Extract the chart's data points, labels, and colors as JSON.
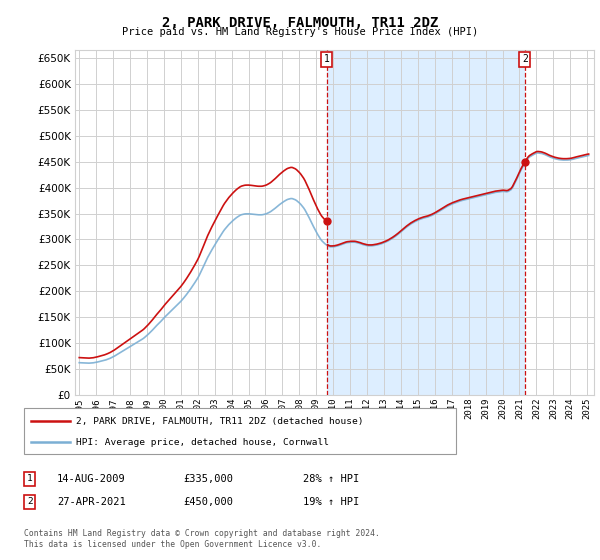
{
  "title": "2, PARK DRIVE, FALMOUTH, TR11 2DZ",
  "subtitle": "Price paid vs. HM Land Registry's House Price Index (HPI)",
  "ytick_values": [
    0,
    50000,
    100000,
    150000,
    200000,
    250000,
    300000,
    350000,
    400000,
    450000,
    500000,
    550000,
    600000,
    650000
  ],
  "hpi_color": "#7bafd4",
  "price_color": "#cc1111",
  "grid_color": "#d0d0d0",
  "shade_color": "#ddeeff",
  "background_color": "#ffffff",
  "sale1_date": "14-AUG-2009",
  "sale1_price": 335000,
  "sale1_pct": "28%",
  "sale1_x": 2009.617,
  "sale2_date": "27-APR-2021",
  "sale2_price": 450000,
  "sale2_pct": "19%",
  "sale2_x": 2021.317,
  "legend_label_price": "2, PARK DRIVE, FALMOUTH, TR11 2DZ (detached house)",
  "legend_label_hpi": "HPI: Average price, detached house, Cornwall",
  "footnote": "Contains HM Land Registry data © Crown copyright and database right 2024.\nThis data is licensed under the Open Government Licence v3.0."
}
